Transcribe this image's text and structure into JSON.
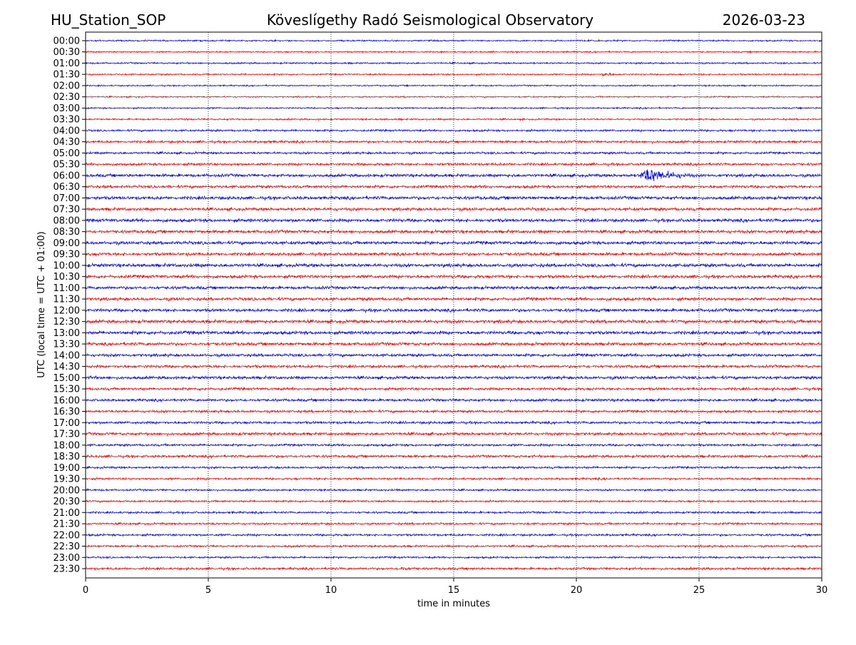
{
  "header": {
    "station": "HU_Station_SOP",
    "observatory": "Köveslígethy Radó Seismological Observatory",
    "date": "2026-03-23"
  },
  "chart_data": {
    "type": "line",
    "title": "Köveslígethy Radó Seismological Observatory",
    "xlabel": "time in minutes",
    "ylabel": "UTC (local time = UTC + 01:00)",
    "xlim": [
      0,
      30
    ],
    "xticks": [
      "0",
      "5",
      "10",
      "15",
      "20",
      "25",
      "30"
    ],
    "grid": "vertical dotted",
    "colors": [
      "#0000ff",
      "#ff0000"
    ],
    "rows": [
      "00:00",
      "00:30",
      "01:00",
      "01:30",
      "02:00",
      "02:30",
      "03:00",
      "03:30",
      "04:00",
      "04:30",
      "05:00",
      "05:30",
      "06:00",
      "06:30",
      "07:00",
      "07:30",
      "08:00",
      "08:30",
      "09:00",
      "09:30",
      "10:00",
      "10:30",
      "11:00",
      "11:30",
      "12:00",
      "12:30",
      "13:00",
      "13:30",
      "14:00",
      "14:30",
      "15:00",
      "15:30",
      "16:00",
      "16:30",
      "17:00",
      "17:30",
      "18:00",
      "18:30",
      "19:00",
      "19:30",
      "20:00",
      "20:30",
      "21:00",
      "21:30",
      "22:00",
      "22:30",
      "23:00",
      "23:30"
    ],
    "noise_level": [
      1.2,
      1.2,
      1.3,
      1.2,
      1.1,
      1.1,
      1.2,
      1.3,
      1.6,
      1.9,
      1.8,
      2.0,
      2.4,
      2.2,
      2.6,
      2.4,
      2.6,
      2.5,
      2.6,
      2.4,
      2.7,
      2.5,
      2.4,
      2.4,
      2.5,
      2.6,
      2.7,
      2.4,
      2.3,
      2.2,
      2.4,
      2.1,
      2.1,
      2.0,
      2.0,
      2.2,
      1.8,
      2.0,
      1.7,
      1.6,
      1.5,
      1.5,
      1.6,
      1.6,
      1.7,
      1.6,
      1.5,
      1.8
    ],
    "events": [
      {
        "row": "01:30",
        "start_min": 21.0,
        "duration_min": 1.0,
        "amplitude": 6
      },
      {
        "row": "06:00",
        "start_min": 22.5,
        "duration_min": 3.0,
        "amplitude": 18
      },
      {
        "row": "04:30",
        "start_min": 7.0,
        "duration_min": 3.0,
        "amplitude": 4
      },
      {
        "row": "15:00",
        "start_min": 0.0,
        "duration_min": 2.0,
        "amplitude": 5
      },
      {
        "row": "23:30",
        "start_min": 12.5,
        "duration_min": 3.0,
        "amplitude": 5
      },
      {
        "row": "09:00",
        "start_min": 4.2,
        "duration_min": 0.8,
        "amplitude": 5
      }
    ]
  }
}
